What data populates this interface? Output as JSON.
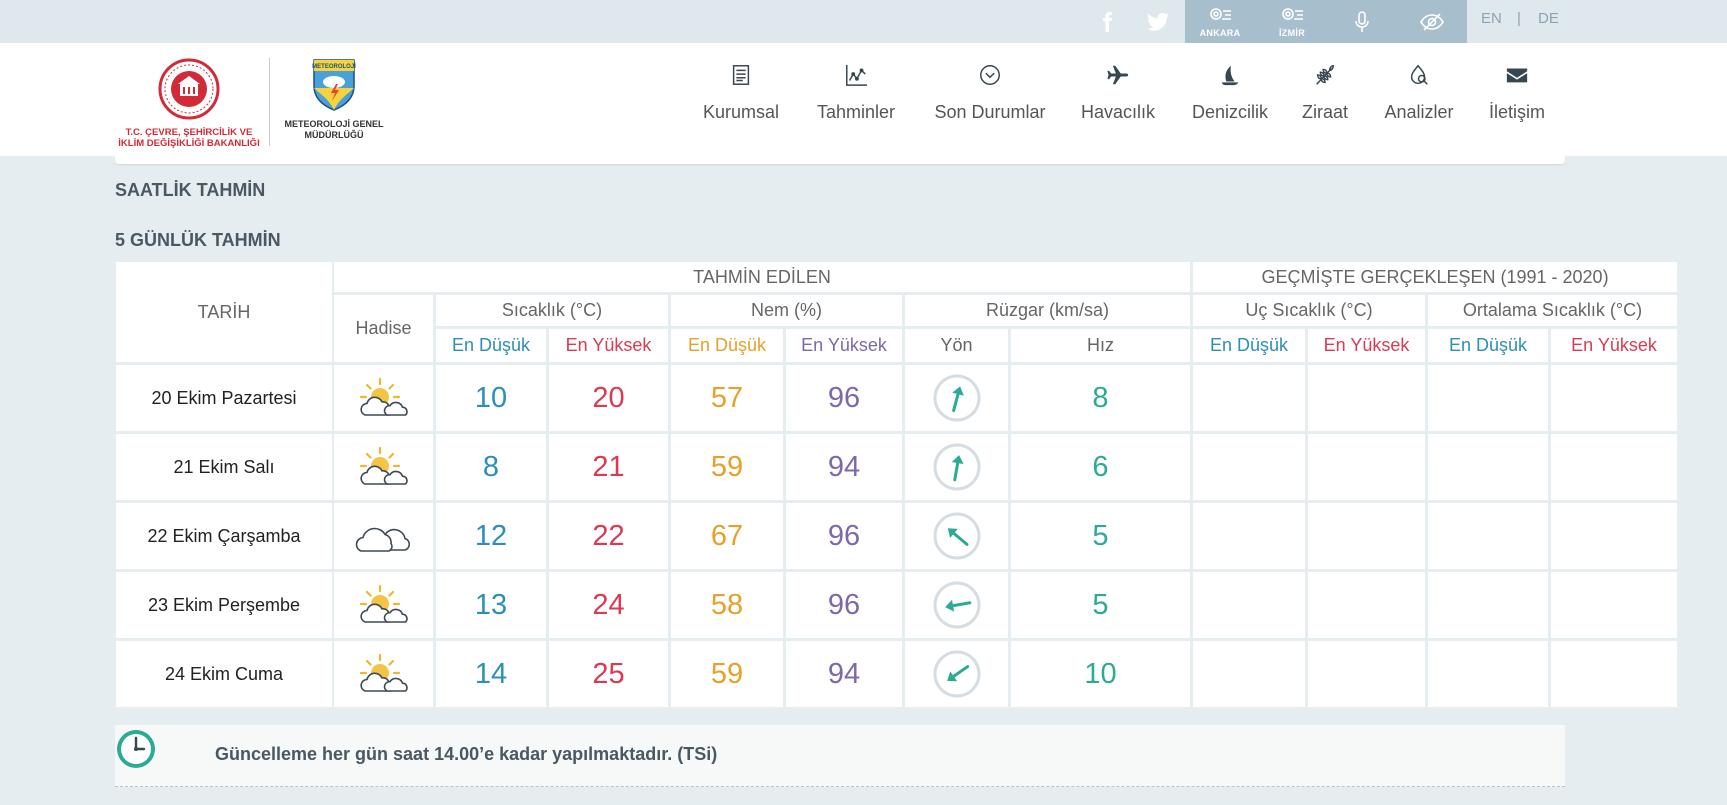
{
  "topbar": {
    "social": [
      {
        "name": "facebook-icon"
      },
      {
        "name": "twitter-icon"
      }
    ],
    "quick_links": [
      {
        "icon": "ankara-icon",
        "label": "ANKARA"
      },
      {
        "icon": "izmir-icon",
        "label": "İZMİR"
      },
      {
        "icon": "microphone-icon",
        "label": ""
      },
      {
        "icon": "eye-accessibility-icon",
        "label": ""
      }
    ],
    "lang_en": "EN",
    "lang_sep": "|",
    "lang_de": "DE"
  },
  "header": {
    "logo_ministry_text": "T.C. ÇEVRE, ŞEHİRCİLİK VE İKLİM DEĞİŞİKLİĞİ BAKANLIĞI",
    "logo_met_badge": "METEOROLOJİ",
    "logo_met_text": "METEOROLOJİ GENEL MÜDÜRLÜĞÜ",
    "nav": [
      {
        "label": "Kurumsal",
        "icon": "document-icon"
      },
      {
        "label": "Tahminler",
        "icon": "chart-line-icon"
      },
      {
        "label": "Son Durumlar",
        "icon": "chevron-circle-icon"
      },
      {
        "label": "Havacılık",
        "icon": "airplane-icon"
      },
      {
        "label": "Denizcilik",
        "icon": "sailboat-icon"
      },
      {
        "label": "Ziraat",
        "icon": "wheat-icon"
      },
      {
        "label": "Analizler",
        "icon": "search-drop-icon"
      },
      {
        "label": "İletişim",
        "icon": "envelope-icon"
      }
    ]
  },
  "sections": {
    "hourly_title": "SAATLİK TAHMİN",
    "five_day_title": "5 GÜNLÜK TAHMİN"
  },
  "table": {
    "headers": {
      "date": "TARİH",
      "forecast": "TAHMİN EDİLEN",
      "past": "GEÇMİŞTE GERÇEKLEŞEN (1991 - 2020)",
      "event": "Hadise",
      "temp": "Sıcaklık (°C)",
      "humidity": "Nem (%)",
      "wind": "Rüzgar (km/sa)",
      "extreme_temp": "Uç Sıcaklık (°C)",
      "avg_temp": "Ortalama Sıcaklık (°C)",
      "min": "En Düşük",
      "max": "En Yüksek",
      "direction": "Yön",
      "speed": "Hız"
    },
    "rows": [
      {
        "date": "20 Ekim Pazartesi",
        "icon": "partly-cloudy-icon",
        "t_min": "10",
        "t_max": "20",
        "h_min": "57",
        "h_max": "96",
        "wind_dir_deg": 195,
        "wind_speed": "8"
      },
      {
        "date": "21 Ekim Salı",
        "icon": "partly-cloudy-icon",
        "t_min": "8",
        "t_max": "21",
        "h_min": "59",
        "h_max": "94",
        "wind_dir_deg": 190,
        "wind_speed": "6"
      },
      {
        "date": "22 Ekim Çarşamba",
        "icon": "cloudy-icon",
        "t_min": "12",
        "t_max": "22",
        "h_min": "67",
        "h_max": "96",
        "wind_dir_deg": 130,
        "wind_speed": "5"
      },
      {
        "date": "23 Ekim Perşembe",
        "icon": "partly-cloudy-icon",
        "t_min": "13",
        "t_max": "24",
        "h_min": "58",
        "h_max": "96",
        "wind_dir_deg": 80,
        "wind_speed": "5"
      },
      {
        "date": "24 Ekim Cuma",
        "icon": "partly-cloudy-icon",
        "t_min": "14",
        "t_max": "25",
        "h_min": "59",
        "h_max": "94",
        "wind_dir_deg": 55,
        "wind_speed": "10"
      }
    ]
  },
  "footer": {
    "update_note": "Güncelleme her gün saat 14.00’e kadar yapılmaktadır. (TSi)",
    "icon": "clock-icon"
  },
  "colors": {
    "min_temp": "#2c8fb5",
    "max_temp": "#dc3a52",
    "min_humidity": "#e7a028",
    "max_humidity": "#7e68aa",
    "wind": "#2bab93"
  }
}
